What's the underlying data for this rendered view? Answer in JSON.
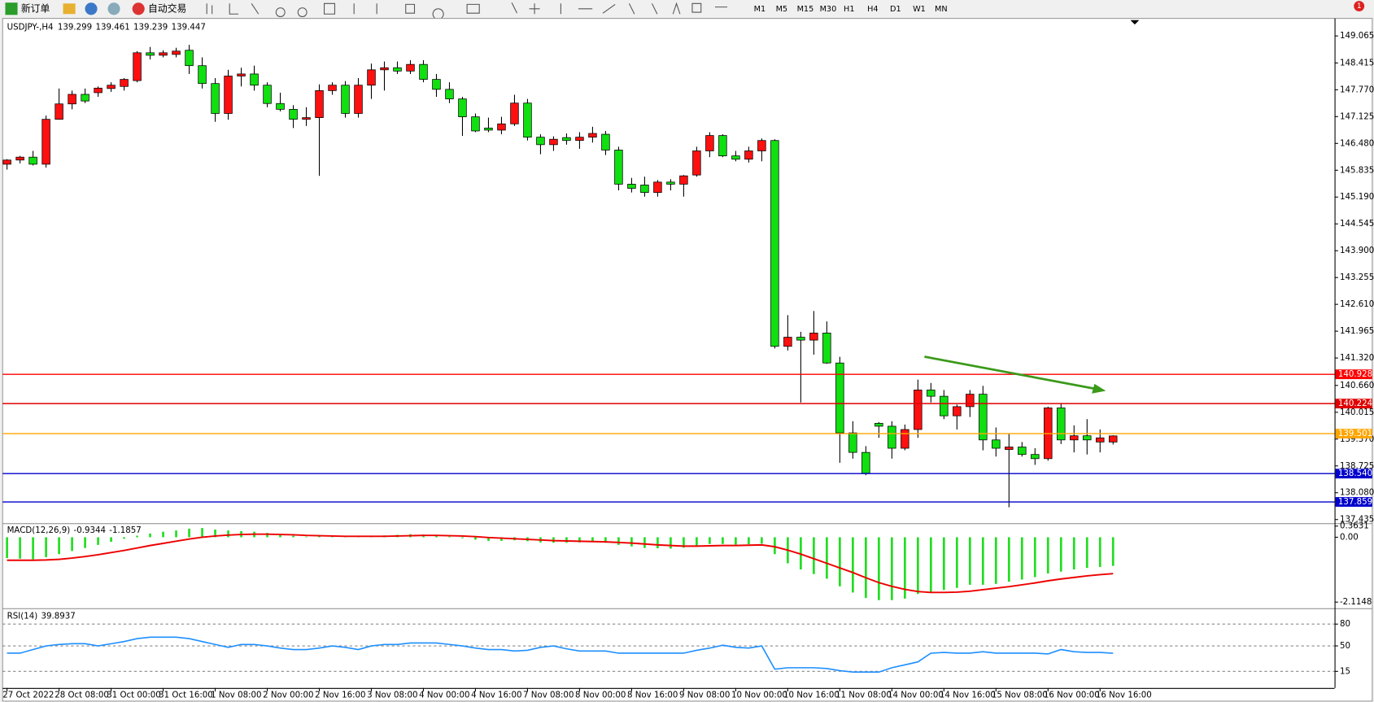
{
  "toolbar": {
    "new_order": "新订单",
    "auto_trade": "自动交易",
    "periods": [
      "M1",
      "M5",
      "M15",
      "M30",
      "H1",
      "H4",
      "D1",
      "W1",
      "MN"
    ],
    "badge": "1"
  },
  "chart_data": {
    "type": "candlestick",
    "symbol": "USDJPY-,H4",
    "up_color": "#ff1010",
    "down_color": "#10e010",
    "open": [
      145.98,
      146.08,
      146.15,
      145.98,
      147.06,
      147.43,
      147.66,
      147.7,
      147.8,
      147.85,
      147.99,
      148.66,
      148.6,
      148.62,
      148.72,
      148.35,
      147.92,
      147.2,
      148.1,
      148.15,
      147.88,
      147.44,
      147.3,
      147.06,
      147.1,
      147.75,
      147.88,
      147.2,
      147.88,
      148.25,
      148.3,
      148.22,
      148.38,
      148.02,
      147.78,
      147.55,
      147.12,
      146.85,
      146.8,
      146.95,
      147.45,
      146.63,
      146.45,
      146.62,
      146.55,
      146.63,
      146.7,
      146.32,
      145.5,
      145.48,
      145.3,
      145.55,
      145.5,
      145.72,
      146.3,
      146.67,
      146.18,
      146.1,
      146.3,
      146.55,
      141.6,
      141.82,
      141.75,
      141.92,
      141.2,
      139.52,
      139.05,
      139.75,
      139.68,
      139.15,
      139.6,
      140.55,
      140.4,
      139.93,
      140.15,
      140.45,
      139.35,
      139.12,
      139.18,
      139,
      138.9,
      140.12,
      139.35,
      139.45,
      139.3,
      139.299
    ],
    "high": [
      146.1,
      146.18,
      146.3,
      147.15,
      147.8,
      147.75,
      147.8,
      147.85,
      147.95,
      148.05,
      148.7,
      148.8,
      148.72,
      148.78,
      148.85,
      148.55,
      148.05,
      148.25,
      148.3,
      148.35,
      147.95,
      147.7,
      147.4,
      147.35,
      147.9,
      147.95,
      147.98,
      148.05,
      148.4,
      148.45,
      148.45,
      148.48,
      148.48,
      148.15,
      147.95,
      147.6,
      147.2,
      147.1,
      147.12,
      147.65,
      147.55,
      146.7,
      146.65,
      146.72,
      146.75,
      146.88,
      146.78,
      146.4,
      145.65,
      145.68,
      145.6,
      145.62,
      145.72,
      146.4,
      146.75,
      146.7,
      146.3,
      146.4,
      146.6,
      146.58,
      142.35,
      141.95,
      142.45,
      142.2,
      141.35,
      139.8,
      139.2,
      139.78,
      139.8,
      139.72,
      140.8,
      140.72,
      140.55,
      140.2,
      140.55,
      140.65,
      139.65,
      139.5,
      139.3,
      139.15,
      140.15,
      140.22,
      139.7,
      139.85,
      139.6,
      139.461
    ],
    "low": [
      145.85,
      146,
      145.95,
      145.9,
      147.05,
      147.3,
      147.45,
      147.6,
      147.72,
      147.75,
      147.95,
      148.5,
      148.55,
      148.55,
      148.15,
      147.8,
      147,
      147.05,
      147.85,
      147.75,
      147.35,
      147.25,
      146.85,
      146.9,
      145.7,
      147.65,
      147.1,
      147.1,
      147.55,
      147.75,
      148.15,
      148.15,
      147.95,
      147.6,
      147.45,
      146.66,
      146.75,
      146.75,
      146.7,
      146.9,
      146.55,
      146.22,
      146.3,
      146.45,
      146.35,
      146.5,
      146.2,
      145.35,
      145.3,
      145.2,
      145.2,
      145.35,
      145.2,
      145.68,
      146.15,
      146.15,
      146.05,
      146.02,
      146.05,
      141.55,
      141.5,
      140.25,
      141.4,
      141.18,
      138.8,
      138.9,
      138.5,
      139.4,
      138.9,
      139.1,
      139.4,
      140.25,
      139.85,
      139.6,
      139.9,
      139.1,
      138.95,
      137.73,
      138.95,
      138.75,
      138.85,
      139.25,
      139.05,
      139,
      139.05,
      139.239
    ],
    "close": [
      146.08,
      146.15,
      145.98,
      147.06,
      147.43,
      147.66,
      147.5,
      147.81,
      147.88,
      148.02,
      148.66,
      148.6,
      148.66,
      148.7,
      148.35,
      147.92,
      147.2,
      148.1,
      148.15,
      147.88,
      147.44,
      147.3,
      147.06,
      147.1,
      147.75,
      147.88,
      147.2,
      147.88,
      148.25,
      148.3,
      148.22,
      148.38,
      148.02,
      147.78,
      147.55,
      147.12,
      146.78,
      146.8,
      146.95,
      147.45,
      146.63,
      146.45,
      146.58,
      146.55,
      146.63,
      146.72,
      146.32,
      145.5,
      145.4,
      145.3,
      145.55,
      145.5,
      145.7,
      146.3,
      146.67,
      146.18,
      146.1,
      146.3,
      146.55,
      141.6,
      141.82,
      141.75,
      141.92,
      141.2,
      139.52,
      139.05,
      138.55,
      139.68,
      139.15,
      139.6,
      140.55,
      140.4,
      139.93,
      140.15,
      140.45,
      139.35,
      139.15,
      139.18,
      139,
      138.9,
      140.12,
      139.35,
      139.45,
      139.35,
      139.4,
      139.447
    ],
    "ylim": [
      137.347,
      149.465
    ],
    "yticks": [
      149.065,
      148.415,
      {
        "value": 147.77,
        "label": "147.770"
      },
      147.125,
      {
        "value": 146.48,
        "label": "146.480"
      },
      145.835,
      {
        "value": 145.19,
        "label": "145.190"
      },
      144.545,
      {
        "value": 143.9,
        "label": "143.900"
      },
      143.255,
      {
        "value": 142.61,
        "label": "142.610"
      },
      141.965,
      {
        "value": 141.32,
        "label": "141.320"
      },
      {
        "value": 140.66,
        "label": "140.660"
      },
      140.015,
      {
        "value": 139.37,
        "label": "139.370"
      },
      138.725,
      {
        "value": 138.08,
        "label": "138.080"
      },
      137.435
    ],
    "levels": [
      {
        "value": 140.928,
        "color": "#ff0000"
      },
      {
        "value": 140.224,
        "color": "#e00000"
      },
      {
        "value": 139.501,
        "color": "#ffa500"
      },
      {
        "value": 138.54,
        "label": "138.540",
        "color": "#0000cc"
      },
      {
        "value": 137.859,
        "color": "#0000cc"
      }
    ],
    "xticks": [
      {
        "value": 0,
        "label": "27 Oct 2022"
      },
      {
        "value": 4,
        "label": "28 Oct 08:00"
      },
      {
        "value": 8,
        "label": "31 Oct 00:00"
      },
      {
        "value": 12,
        "label": "31 Oct 16:00"
      },
      {
        "value": 16,
        "label": "1 Nov 08:00"
      },
      {
        "value": 20,
        "label": "2 Nov 00:00"
      },
      {
        "value": 24,
        "label": "2 Nov 16:00"
      },
      {
        "value": 28,
        "label": "3 Nov 08:00"
      },
      {
        "value": 32,
        "label": "4 Nov 00:00"
      },
      {
        "value": 36,
        "label": "4 Nov 16:00"
      },
      {
        "value": 40,
        "label": "7 Nov 08:00"
      },
      {
        "value": 44,
        "label": "8 Nov 00:00"
      },
      {
        "value": 48,
        "label": "8 Nov 16:00"
      },
      {
        "value": 52,
        "label": "9 Nov 08:00"
      },
      {
        "value": 56,
        "label": "10 Nov 00:00"
      },
      {
        "value": 60,
        "label": "10 Nov 16:00"
      },
      {
        "value": 64,
        "label": "11 Nov 08:00"
      },
      {
        "value": 68,
        "label": "14 Nov 00:00"
      },
      {
        "value": 72,
        "label": "14 Nov 16:00"
      },
      {
        "value": 76,
        "label": "15 Nov 08:00"
      },
      {
        "value": 80,
        "label": "16 Nov 00:00"
      },
      {
        "value": 84,
        "label": "16 Nov 16:00"
      }
    ],
    "macd": {
      "name": "MACD(12,26,9)",
      "ylim": [
        -2.257,
        0.4
      ],
      "yticks": [
        0.3631,
        {
          "value": 0,
          "label": "0.00"
        },
        -2.1148
      ],
      "series": [
        {
          "name": "main",
          "color": "#22dd22",
          "values": [
            -0.68,
            -0.7,
            -0.72,
            -0.65,
            -0.55,
            -0.45,
            -0.35,
            -0.25,
            -0.15,
            -0.05,
            0.05,
            0.12,
            0.18,
            0.22,
            0.28,
            0.3,
            0.25,
            0.22,
            0.2,
            0.18,
            0.14,
            0.1,
            0.05,
            0.02,
            0.03,
            0.04,
            0.02,
            0.03,
            0.05,
            0.06,
            0.08,
            0.1,
            0.09,
            0.06,
            0.02,
            -0.03,
            -0.08,
            -0.12,
            -0.12,
            -0.1,
            -0.13,
            -0.17,
            -0.18,
            -0.18,
            -0.17,
            -0.16,
            -0.18,
            -0.25,
            -0.3,
            -0.35,
            -0.36,
            -0.37,
            -0.34,
            -0.28,
            -0.22,
            -0.22,
            -0.24,
            -0.23,
            -0.21,
            -0.55,
            -0.85,
            -1.05,
            -1.2,
            -1.35,
            -1.6,
            -1.8,
            -1.98,
            -2.05,
            -2.05,
            -2,
            -1.85,
            -1.78,
            -1.72,
            -1.65,
            -1.55,
            -1.55,
            -1.52,
            -1.45,
            -1.38,
            -1.3,
            -1.18,
            -1.12,
            -1.05,
            -1,
            -0.97,
            -0.9344
          ]
        },
        {
          "name": "signal",
          "color": "#ee0000",
          "values": [
            -0.75,
            -0.75,
            -0.75,
            -0.74,
            -0.72,
            -0.68,
            -0.63,
            -0.57,
            -0.5,
            -0.43,
            -0.35,
            -0.27,
            -0.2,
            -0.13,
            -0.06,
            0,
            0.04,
            0.07,
            0.09,
            0.1,
            0.1,
            0.09,
            0.08,
            0.06,
            0.05,
            0.04,
            0.03,
            0.03,
            0.03,
            0.03,
            0.04,
            0.05,
            0.06,
            0.06,
            0.05,
            0.04,
            0.02,
            -0.01,
            -0.03,
            -0.05,
            -0.07,
            -0.09,
            -0.11,
            -0.12,
            -0.13,
            -0.14,
            -0.15,
            -0.17,
            -0.19,
            -0.22,
            -0.25,
            -0.27,
            -0.29,
            -0.29,
            -0.28,
            -0.27,
            -0.27,
            -0.26,
            -0.25,
            -0.31,
            -0.42,
            -0.55,
            -0.7,
            -0.85,
            -1,
            -1.15,
            -1.32,
            -1.48,
            -1.6,
            -1.7,
            -1.77,
            -1.8,
            -1.8,
            -1.79,
            -1.76,
            -1.71,
            -1.66,
            -1.61,
            -1.55,
            -1.49,
            -1.42,
            -1.36,
            -1.31,
            -1.26,
            -1.22,
            -1.1857
          ]
        }
      ]
    },
    "rsi": {
      "name": "RSI(14)",
      "ylim": [
        0,
        100
      ],
      "yticks": [
        80,
        50,
        15
      ],
      "color": "#1e8fff",
      "values": [
        40,
        40,
        45,
        50,
        52,
        53,
        53,
        50,
        53,
        56,
        60,
        62,
        62,
        62,
        60,
        56,
        52,
        48,
        52,
        52,
        50,
        47,
        45,
        45,
        47,
        50,
        48,
        45,
        50,
        52,
        52,
        54,
        54,
        54,
        52,
        50,
        47,
        45,
        45,
        43,
        44,
        48,
        50,
        46,
        43,
        43,
        43,
        40,
        40,
        40,
        40,
        40,
        40,
        44,
        47,
        51,
        48,
        47,
        50,
        18,
        20,
        20,
        20,
        19,
        16,
        14,
        14,
        14,
        20,
        24,
        28,
        40,
        41,
        40,
        40,
        42,
        40,
        40,
        40,
        40,
        39,
        45,
        42,
        41,
        41,
        39.8937
      ]
    }
  }
}
